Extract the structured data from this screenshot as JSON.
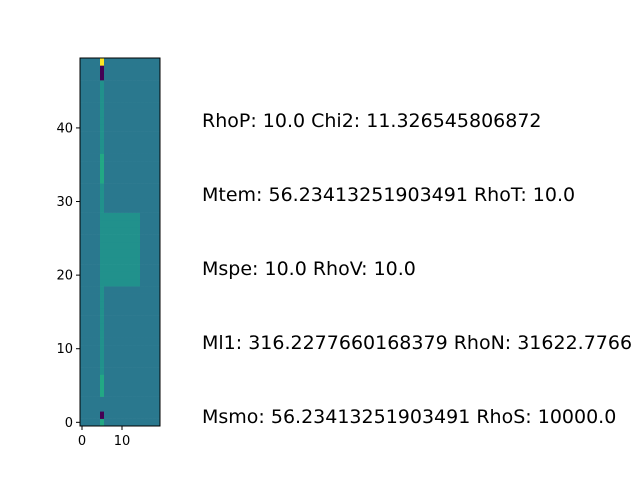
{
  "chart_data": {
    "type": "heatmap",
    "colormap": "viridis",
    "grid": false,
    "xlim": [
      -0.5,
      19.5
    ],
    "ylim": [
      -0.5,
      49.5
    ],
    "xticks": [
      0,
      10
    ],
    "yticks": [
      0,
      10,
      20,
      30,
      40
    ],
    "annotations": [
      "RhoP: 10.0 Chi2: 11.326545806872",
      "Mtem: 56.23413251903491 RhoT: 10.0",
      "Mspe: 10.0 RhoV: 10.0",
      "Ml1: 316.2277660168379 RhoN: 31622.7766",
      "Msmo: 56.23413251903491 RhoS: 10000.0"
    ]
  },
  "colors": {
    "background": "#2a788e",
    "spike_high": "#fde725",
    "spike_low": "#440154",
    "bright": "#22a884",
    "medium": "#21918c"
  }
}
